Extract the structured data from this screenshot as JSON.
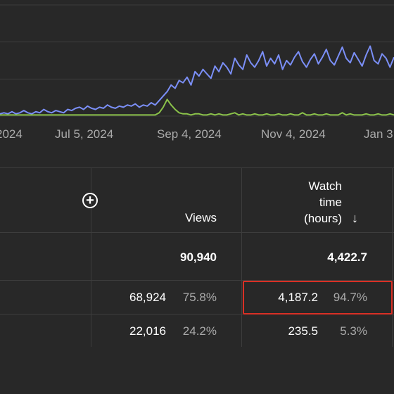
{
  "chart_data": {
    "type": "line",
    "x_tick_labels": [
      "2024",
      "Jul 5, 2024",
      "Sep 4, 2024",
      "Nov 4, 2024",
      "Jan 3"
    ],
    "y_gridlines": 4,
    "series": [
      {
        "color": "#7b8ff7",
        "values": [
          2,
          3,
          2,
          4,
          2,
          3,
          5,
          3,
          2,
          4,
          3,
          6,
          4,
          3,
          5,
          4,
          3,
          6,
          5,
          7,
          8,
          6,
          9,
          7,
          6,
          8,
          7,
          10,
          8,
          7,
          9,
          8,
          10,
          9,
          11,
          8,
          10,
          9,
          12,
          10,
          14,
          18,
          22,
          28,
          25,
          32,
          30,
          35,
          28,
          40,
          36,
          42,
          38,
          34,
          45,
          40,
          48,
          44,
          38,
          52,
          46,
          42,
          55,
          48,
          44,
          50,
          58,
          45,
          52,
          47,
          55,
          42,
          50,
          46,
          53,
          58,
          49,
          44,
          51,
          56,
          47,
          53,
          60,
          50,
          46,
          54,
          62,
          52,
          48,
          57,
          51,
          45,
          55,
          63,
          50,
          47,
          56,
          52,
          44,
          53
        ]
      },
      {
        "color": "#8bc34a",
        "values": [
          1,
          1,
          1,
          1,
          1,
          1,
          1,
          1,
          1,
          1,
          1,
          1,
          1,
          1,
          1,
          1,
          1,
          1,
          1,
          1,
          1,
          1,
          1,
          1,
          1,
          1,
          1,
          1,
          1,
          1,
          1,
          1,
          1,
          1,
          1,
          1,
          1,
          1,
          1,
          1,
          3,
          8,
          15,
          10,
          6,
          3,
          2,
          2,
          1,
          2,
          2,
          1,
          1,
          2,
          1,
          2,
          1,
          1,
          2,
          3,
          1,
          2,
          1,
          1,
          2,
          1,
          1,
          2,
          1,
          1,
          2,
          1,
          1,
          2,
          1,
          1,
          3,
          1,
          1,
          2,
          1,
          1,
          2,
          1,
          1,
          1,
          3,
          1,
          2,
          1,
          1,
          1,
          2,
          1,
          1,
          2,
          1,
          1,
          2,
          1
        ]
      }
    ]
  },
  "table": {
    "headers": {
      "views": "Views",
      "watch_line1": "Watch",
      "watch_line2": "time",
      "watch_line3": "(hours)",
      "sort_arrow": "↓"
    },
    "add_icon": "plus-circle-icon",
    "total": {
      "views": "90,940",
      "watch": "4,422.7"
    },
    "rows": [
      {
        "views": "68,924",
        "views_pct": "75.8%",
        "watch": "4,187.2",
        "watch_pct": "94.7%"
      },
      {
        "views": "22,016",
        "views_pct": "24.2%",
        "watch": "235.5",
        "watch_pct": "5.3%"
      }
    ],
    "highlight_color": "#d93025"
  }
}
